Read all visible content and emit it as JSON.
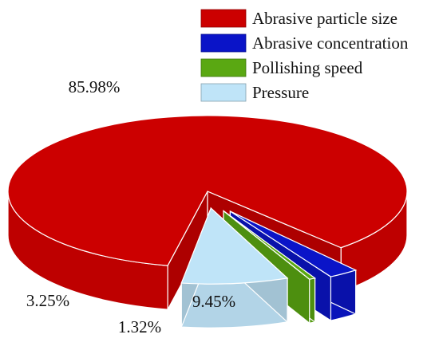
{
  "chart_data": {
    "type": "pie",
    "style": "3d-exploded",
    "title": "",
    "slices": [
      {
        "name": "Abrasive particle size",
        "value": 85.98,
        "label": "85.98%",
        "color": "#cc0000"
      },
      {
        "name": "Abrasive concentration",
        "value": 3.25,
        "label": "3.25%",
        "color": "#0a14c8"
      },
      {
        "name": "Pollishing speed",
        "value": 1.32,
        "label": "1.32%",
        "color": "#5aa812"
      },
      {
        "name": "Pressure",
        "value": 9.45,
        "label": "9.45%",
        "color": "#bfe4f8"
      }
    ],
    "legend_position": "top-right"
  }
}
